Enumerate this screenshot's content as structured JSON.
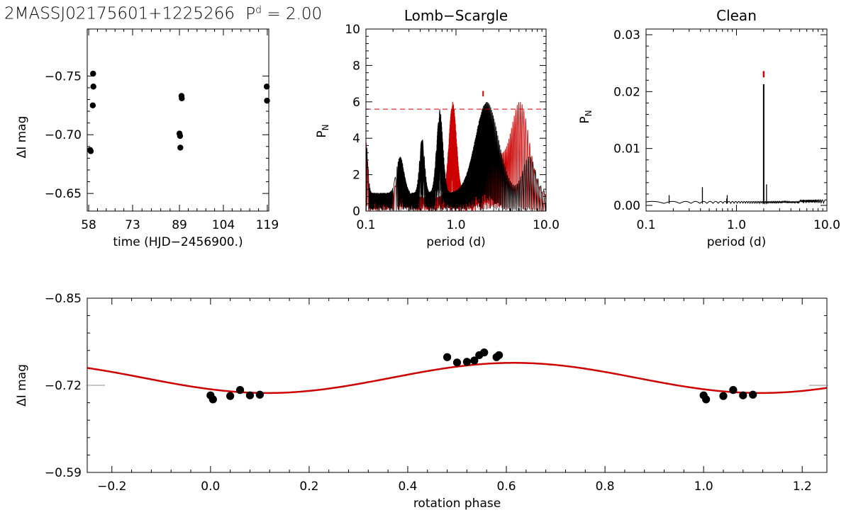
{
  "header": {
    "object_name": "2MASSJ02175601+1225266",
    "period_symbol": "P",
    "period_superscript": "d",
    "period_text": "= 2.00"
  },
  "chart_data": [
    {
      "id": "timeseries",
      "type": "scatter",
      "title": "",
      "xlabel": "time (HJD−2456900.)",
      "ylabel": "ΔI mag",
      "xlim": [
        57.5,
        119.5
      ],
      "ylim": [
        -0.79,
        -0.635
      ],
      "y_inverted": true,
      "xticks": [
        58,
        73,
        89,
        104,
        119
      ],
      "xtick_labels": [
        "58",
        "73",
        "89",
        "104",
        "119"
      ],
      "yticks": [
        -0.75,
        -0.7,
        -0.65
      ],
      "ytick_labels": [
        "−0.75",
        "−0.70",
        "−0.65"
      ],
      "series": [
        {
          "points": [
            [
              58.5,
              -0.687
            ],
            [
              58.7,
              -0.686
            ],
            [
              59.5,
              -0.752
            ],
            [
              59.6,
              -0.741
            ],
            [
              59.4,
              -0.725
            ],
            [
              89.0,
              -0.701
            ],
            [
              89.2,
              -0.699
            ],
            [
              89.3,
              -0.689
            ],
            [
              89.7,
              -0.733
            ],
            [
              89.8,
              -0.731
            ],
            [
              118.8,
              -0.741
            ],
            [
              118.9,
              -0.729
            ]
          ]
        }
      ]
    },
    {
      "id": "lomb_scargle",
      "type": "line",
      "title": "Lomb−Scargle",
      "xlabel": "period (d)",
      "ylabel": "P_N",
      "xscale": "log",
      "xlim": [
        0.1,
        10.0
      ],
      "ylim": [
        0,
        10
      ],
      "xticks": [
        0.1,
        1.0,
        10.0
      ],
      "xtick_labels": [
        "0.1",
        "1.0",
        "10.0"
      ],
      "yticks": [
        0,
        2,
        4,
        6,
        8,
        10
      ],
      "ytick_labels": [
        "0",
        "2",
        "4",
        "6",
        "8",
        "10"
      ],
      "threshold": 5.6,
      "peak_marker_period": 2.0,
      "series": [
        {
          "color": "#000000",
          "kind": "observed"
        },
        {
          "color": "#cc0000",
          "kind": "window"
        }
      ],
      "colors": {
        "observed": "#000000",
        "window": "#cc0000",
        "threshold": "#cc0000"
      }
    },
    {
      "id": "clean",
      "type": "line",
      "title": "Clean",
      "xlabel": "period (d)",
      "ylabel": "P_N",
      "xscale": "log",
      "xlim": [
        0.1,
        10.0
      ],
      "ylim": [
        -0.001,
        0.031
      ],
      "xticks": [
        0.1,
        1.0,
        10.0
      ],
      "xtick_labels": [
        "0.1",
        "1.0",
        "10.0"
      ],
      "yticks": [
        0.0,
        0.01,
        0.02,
        0.03
      ],
      "ytick_labels": [
        "0.00",
        "0.01",
        "0.02",
        "0.03"
      ],
      "peak_marker_period": 2.0,
      "series": [
        {
          "spikes": [
            [
              0.18,
              0.0018
            ],
            [
              0.42,
              0.0032
            ],
            [
              0.78,
              0.0012
            ],
            [
              0.79,
              0.0018
            ],
            [
              2.0,
              0.0213
            ],
            [
              2.15,
              0.0037
            ]
          ]
        }
      ]
    },
    {
      "id": "phased",
      "type": "scatter",
      "title": "",
      "xlabel": "rotation phase",
      "ylabel": "ΔI mag",
      "xlim": [
        -0.25,
        1.25
      ],
      "ylim": [
        -0.85,
        -0.59
      ],
      "y_inverted": true,
      "xticks": [
        -0.2,
        0.0,
        0.2,
        0.4,
        0.6,
        0.8,
        1.0,
        1.2
      ],
      "xtick_labels": [
        "−0.2",
        "0.0",
        "0.2",
        "0.4",
        "0.6",
        "0.8",
        "1.0",
        "1.2"
      ],
      "yticks": [
        -0.85,
        -0.72,
        -0.59
      ],
      "ytick_labels": [
        "−0.85",
        "−0.72",
        "−0.59"
      ],
      "fit": {
        "mean": -0.731,
        "amplitude": 0.0225,
        "phase_of_max": 0.615,
        "color": "#cc0000"
      },
      "points": [
        [
          0.0,
          -0.705
        ],
        [
          0.005,
          -0.699
        ],
        [
          0.04,
          -0.704
        ],
        [
          0.06,
          -0.713
        ],
        [
          0.08,
          -0.705
        ],
        [
          0.1,
          -0.706
        ],
        [
          0.48,
          -0.762
        ],
        [
          0.5,
          -0.754
        ],
        [
          0.52,
          -0.755
        ],
        [
          0.535,
          -0.757
        ],
        [
          0.545,
          -0.765
        ],
        [
          0.555,
          -0.769
        ],
        [
          0.58,
          -0.762
        ],
        [
          0.585,
          -0.765
        ],
        [
          1.0,
          -0.705
        ],
        [
          1.005,
          -0.699
        ],
        [
          1.04,
          -0.704
        ],
        [
          1.06,
          -0.713
        ],
        [
          1.08,
          -0.705
        ],
        [
          1.1,
          -0.706
        ]
      ]
    }
  ]
}
